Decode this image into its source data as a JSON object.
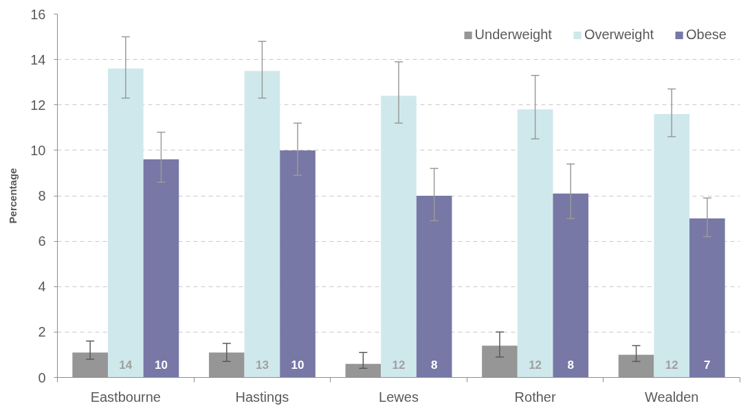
{
  "chart_data": {
    "type": "bar",
    "ylabel": "Percentage",
    "categories": [
      "Eastbourne",
      "Hastings",
      "Lewes",
      "Rother",
      "Wealden"
    ],
    "series": [
      {
        "name": "Underweight",
        "color": "#969696",
        "values": [
          1.1,
          1.1,
          0.6,
          1.4,
          1.0
        ],
        "errors": [
          [
            0.8,
            1.6
          ],
          [
            0.7,
            1.5
          ],
          [
            0.4,
            1.1
          ],
          [
            0.9,
            2.0
          ],
          [
            0.7,
            1.4
          ]
        ]
      },
      {
        "name": "Overweight",
        "color": "#cfe8ec",
        "values": [
          13.6,
          13.5,
          12.4,
          11.8,
          11.6
        ],
        "errors": [
          [
            12.3,
            15.0
          ],
          [
            12.3,
            14.8
          ],
          [
            11.2,
            13.9
          ],
          [
            10.5,
            13.3
          ],
          [
            10.6,
            12.7
          ]
        ],
        "value_labels": [
          "14",
          "13",
          "12",
          "12",
          "12"
        ]
      },
      {
        "name": "Obese",
        "color": "#7878a6",
        "values": [
          9.6,
          10.0,
          8.0,
          8.1,
          7.0
        ],
        "errors": [
          [
            8.6,
            10.8
          ],
          [
            8.9,
            11.2
          ],
          [
            6.9,
            9.2
          ],
          [
            7.0,
            9.4
          ],
          [
            6.2,
            7.9
          ]
        ],
        "value_labels": [
          "10",
          "10",
          "8",
          "8",
          "7"
        ]
      }
    ],
    "ylim": [
      0,
      16
    ],
    "yticks": [
      0,
      2,
      4,
      6,
      8,
      10,
      12,
      14,
      16
    ],
    "grid": "y",
    "legend": "top right"
  }
}
